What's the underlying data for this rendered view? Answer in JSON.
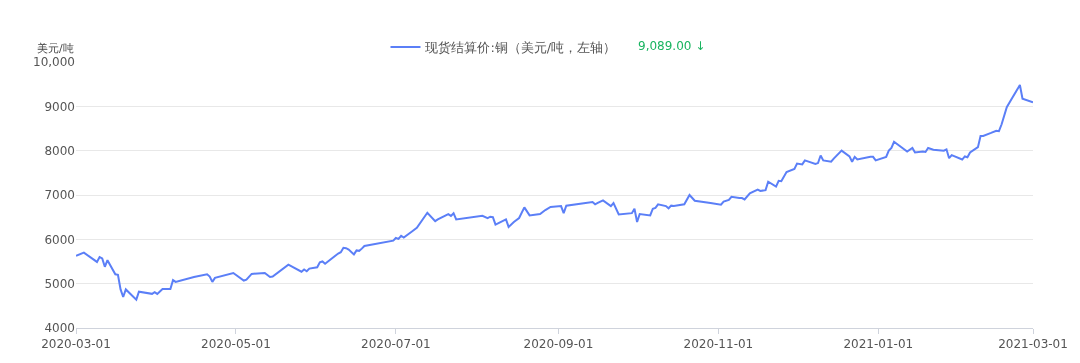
{
  "chart_data": {
    "type": "line",
    "ylabel": "美元/吨",
    "legend": "top",
    "annotations": [
      "9,089.00 ↓"
    ],
    "x": [
      "2020-03-01",
      "2020-03-04",
      "2020-03-09",
      "2020-03-10",
      "2020-03-11",
      "2020-03-12",
      "2020-03-13",
      "2020-03-16",
      "2020-03-17",
      "2020-03-18",
      "2020-03-19",
      "2020-03-20",
      "2020-03-24",
      "2020-03-25",
      "2020-03-30",
      "2020-03-31",
      "2020-04-01",
      "2020-04-03",
      "2020-04-06",
      "2020-04-07",
      "2020-04-08",
      "2020-04-15",
      "2020-04-20",
      "2020-04-21",
      "2020-04-22",
      "2020-04-23",
      "2020-04-30",
      "2020-05-04",
      "2020-05-05",
      "2020-05-07",
      "2020-05-12",
      "2020-05-14",
      "2020-05-15",
      "2020-05-21",
      "2020-05-26",
      "2020-05-27",
      "2020-05-28",
      "2020-05-29",
      "2020-06-01",
      "2020-06-02",
      "2020-06-03",
      "2020-06-04",
      "2020-06-09",
      "2020-06-10",
      "2020-06-11",
      "2020-06-12",
      "2020-06-13",
      "2020-06-15",
      "2020-06-16",
      "2020-06-17",
      "2020-06-18",
      "2020-06-19",
      "2020-06-30",
      "2020-07-01",
      "2020-07-02",
      "2020-07-03",
      "2020-07-04",
      "2020-07-07",
      "2020-07-09",
      "2020-07-13",
      "2020-07-16",
      "2020-07-17",
      "2020-07-21",
      "2020-07-22",
      "2020-07-23",
      "2020-07-24",
      "2020-08-03",
      "2020-08-05",
      "2020-08-06",
      "2020-08-07",
      "2020-08-08",
      "2020-08-12",
      "2020-08-13",
      "2020-08-15",
      "2020-08-17",
      "2020-08-19",
      "2020-08-21",
      "2020-08-25",
      "2020-08-27",
      "2020-08-29",
      "2020-09-02",
      "2020-09-03",
      "2020-09-04",
      "2020-09-14",
      "2020-09-15",
      "2020-09-16",
      "2020-09-18",
      "2020-09-21",
      "2020-09-22",
      "2020-09-24",
      "2020-09-29",
      "2020-09-30",
      "2020-10-01",
      "2020-10-02",
      "2020-10-06",
      "2020-10-07",
      "2020-10-08",
      "2020-10-09",
      "2020-10-12",
      "2020-10-13",
      "2020-10-14",
      "2020-10-15",
      "2020-10-19",
      "2020-10-21",
      "2020-10-23",
      "2020-10-29",
      "2020-11-02",
      "2020-11-03",
      "2020-11-05",
      "2020-11-06",
      "2020-11-09",
      "2020-11-10",
      "2020-11-11",
      "2020-11-13",
      "2020-11-16",
      "2020-11-17",
      "2020-11-19",
      "2020-11-20",
      "2020-11-23",
      "2020-11-24",
      "2020-11-25",
      "2020-11-27",
      "2020-11-30",
      "2020-12-01",
      "2020-12-03",
      "2020-12-04",
      "2020-12-08",
      "2020-12-09",
      "2020-12-10",
      "2020-12-11",
      "2020-12-14",
      "2020-12-15",
      "2020-12-18",
      "2020-12-21",
      "2020-12-22",
      "2020-12-23",
      "2020-12-24",
      "2020-12-29",
      "2020-12-30",
      "2020-12-31",
      "2021-01-04",
      "2021-01-05",
      "2021-01-06",
      "2021-01-07",
      "2021-01-12",
      "2021-01-14",
      "2021-01-15",
      "2021-01-18",
      "2021-01-19",
      "2021-01-20",
      "2021-01-22",
      "2021-01-26",
      "2021-01-27",
      "2021-01-28",
      "2021-01-29",
      "2021-02-02",
      "2021-02-03",
      "2021-02-04",
      "2021-02-05",
      "2021-02-08",
      "2021-02-09",
      "2021-02-10",
      "2021-02-13",
      "2021-02-15",
      "2021-02-16",
      "2021-02-17",
      "2021-02-19",
      "2021-02-21",
      "2021-02-24",
      "2021-02-25",
      "2021-03-01"
    ],
    "series": [
      {
        "name": "现货结算价:铜（美元/吨，左轴）",
        "color": "#5b7ff7",
        "values": [
          5630,
          5700,
          5490,
          5600,
          5570,
          5380,
          5530,
          5210,
          5200,
          4870,
          4700,
          4870,
          4640,
          4820,
          4770,
          4810,
          4770,
          4880,
          4880,
          5080,
          5040,
          5150,
          5210,
          5160,
          5040,
          5130,
          5240,
          5070,
          5090,
          5220,
          5240,
          5150,
          5160,
          5430,
          5270,
          5320,
          5280,
          5340,
          5370,
          5480,
          5500,
          5450,
          5680,
          5710,
          5810,
          5800,
          5770,
          5660,
          5750,
          5740,
          5790,
          5850,
          5970,
          6030,
          6010,
          6080,
          6040,
          6170,
          6260,
          6600,
          6410,
          6450,
          6570,
          6530,
          6590,
          6450,
          6530,
          6480,
          6510,
          6500,
          6330,
          6450,
          6280,
          6390,
          6480,
          6720,
          6540,
          6570,
          6660,
          6730,
          6750,
          6590,
          6760,
          6840,
          6790,
          6820,
          6880,
          6750,
          6820,
          6560,
          6590,
          6690,
          6390,
          6570,
          6540,
          6690,
          6710,
          6790,
          6750,
          6700,
          6760,
          6750,
          6790,
          7000,
          6870,
          6820,
          6780,
          6850,
          6890,
          6960,
          6930,
          6930,
          6900,
          7040,
          7120,
          7090,
          7110,
          7300,
          7190,
          7320,
          7310,
          7520,
          7590,
          7710,
          7690,
          7780,
          7700,
          7720,
          7890,
          7780,
          7750,
          7820,
          8000,
          7870,
          7750,
          7860,
          7800,
          7860,
          7860,
          7780,
          7860,
          8000,
          8060,
          8200,
          7980,
          8060,
          7960,
          7980,
          7970,
          8060,
          8020,
          8000,
          8030,
          7830,
          7900,
          7800,
          7870,
          7850,
          7960,
          8080,
          8330,
          8330,
          8400,
          8450,
          8440,
          8590,
          8980,
          9180,
          9480,
          9170,
          9090
        ]
      }
    ],
    "xlim": [
      "2020-03-01",
      "2021-03-01"
    ],
    "xticks": [
      {
        "value": "2020-03-01",
        "label": "2020-03-01"
      },
      {
        "value": "2020-05-01",
        "label": "2020-05-01"
      },
      {
        "value": "2020-07-01",
        "label": "2020-07-01"
      },
      {
        "value": "2020-09-01",
        "label": "2020-09-01"
      },
      {
        "value": "2020-11-01",
        "label": "2020-11-01"
      },
      {
        "value": "2021-01-01",
        "label": "2021-01-01"
      },
      {
        "value": "2021-03-01",
        "label": "2021-03-01"
      }
    ],
    "ylim": [
      4000,
      10000
    ],
    "yticks": [
      4000,
      5000,
      6000,
      7000,
      8000,
      9000,
      {
        "value": 10000,
        "label": "10,000"
      }
    ],
    "grid": "y",
    "marker": "none",
    "line_style": "solid"
  }
}
